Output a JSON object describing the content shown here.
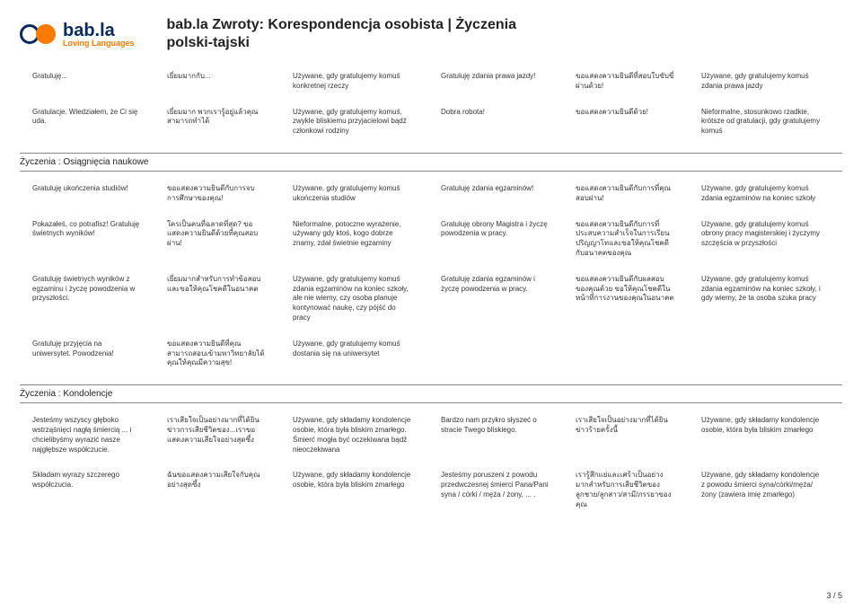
{
  "header": {
    "brand": "bab.la",
    "tagline": "Loving Languages",
    "title_line1": "bab.la Zwroty: Korespondencja osobista | Życzenia",
    "title_line2": "polski-tajski"
  },
  "toprows": [
    {
      "c1": "Gratuluję...",
      "c2": "เยี่ยมมากกับ...",
      "c3": "Używane, gdy gratulujemy komuś konkretnej rzeczy",
      "c4": "Gratuluję zdania prawa jazdy!",
      "c5": "ขอแสดงความยินดีที่สอบใบขับขี่ผ่านด้วย!",
      "c6": "Używane, gdy gratulujemy komuś zdania prawa jazdy"
    },
    {
      "c1": "Gratulacje. Wiedziałem, że Ci się uda.",
      "c2": "เยี่ยมมาก พวกเรารู้อยู่แล้วคุณสามารถทำได้",
      "c3": "Używane, gdy gratulujemy komuś, zwykle bliskiemu przyjacielowi bądź członkowi rodziny",
      "c4": "Dobra robota!",
      "c5": "ขอแสดงความยินดีด้วย!",
      "c6": "Nieformalne, stosunkowo rzadkie, krótsze od gratulacji, gdy gratulujemy komuś"
    }
  ],
  "section1_title": "Życzenia : Osiągnięcia naukowe",
  "section1_rows": [
    {
      "c1": "Gratuluję ukończenia studiów!",
      "c2": "ขอแสดงความยินดีกับการจบการศึกษาของคุณ!",
      "c3": "Używane, gdy gratulujemy komuś ukończenia studiów",
      "c4": "Gratuluję zdania egzaminów!",
      "c5": "ขอแสดงความยินดีกับการที่คุณสอบผ่าน!",
      "c6": "Używane, gdy gratulujemy komuś zdania egzaminów na koniec szkoły"
    },
    {
      "c1": "Pokazałeś, co potrafisz! Gratuluję świetnych wyników!",
      "c2": "ใครเป็นคนที่ฉลาดที่สุด? ขอแสดงความยินดีด้วยที่คุณสอบผ่าน!",
      "c3": "Nieformalne, potoczne wyrażenie, używany gdy ktoś, kogo dobrze znamy, zdał świetnie egzaminy",
      "c4": "Gratuluję obrony Magistra i życzę powodzenia w pracy.",
      "c5": "ขอแสดงความยินดีกับการที่ประสบความสำเร็จในการเรียนปริญญาโทและขอให้คุณโชคดีกับอนาคตของคุณ",
      "c6": "Używane, gdy gratulujemy komuś obrony pracy magisterskiej i życzymy szczęścia w przyszłości"
    },
    {
      "c1": "Gratuluję świetnych wyników z egzaminu i życzę powodzenia w przyszłości.",
      "c2": "เยี่ยมมากสำหรับการทำข้อสอบและขอให้คุณโชคดีในอนาคต",
      "c3": "Używane, gdy gratulujemy komuś zdania egzaminów na koniec szkoły, ale nie wiemy, czy osoba planuje kontynować naukę, czy pójść do pracy",
      "c4": "Gratuluję zdania egzaminów i życzę powodzenia w pracy.",
      "c5": "ขอแสดงความยินดีกับผลสอบของคุณด้วย ขอให้คุณโชคดีในหน้าที่การงานของคุณในอนาคต",
      "c6": "Używane, gdy gratulujemy komuś zdania egzaminów na koniec szkoły, i gdy wiemy, że ta osoba szuka pracy"
    },
    {
      "c1": "Gratuluję przyjęcia na uniwersytet. Powodzenia!",
      "c2": "ขอแสดงความยินดีที่คุณสามารถสอบเข้ามหาวิทยาลัยได้ คุณให้คุณมีความสุข!",
      "c3": "Używane, gdy gratulujemy komuś dostania się na uniwersytet",
      "c4": "",
      "c5": "",
      "c6": ""
    }
  ],
  "section2_title": "Życzenia : Kondolencje",
  "section2_rows": [
    {
      "c1": "Jesteśmy wszyscy głęboko wstrząśnięci nagłą śmiercią ... i chcielibyśmy wyrazić nasze najgłębsze współczucie.",
      "c2": "เราเสียใจเป็นอย่างมากที่ได้ยินข่าวการเสียชีวิตของ...เราขอแสดงความเสียใจอย่างสุดซึ้ง",
      "c3": "Używane, gdy składamy kondolencje osobie, która była bliskim zmarłego. Śmierć mogła być oczekiwana bądź nieoczekiwana",
      "c4": "Bardzo nam przykro słyszeć o stracie Twego bliskiego.",
      "c5": "เราเสียใจเป็นอย่างมากที่ได้ยินข่าวร้ายครั้งนี้",
      "c6": "Używane, gdy składamy kondolencje osobie, która była bliskim zmarłego"
    },
    {
      "c1": "Składam wyrazy szczerego współczucia.",
      "c2": "ฉันขอแสดงความเสียใจกับคุณอย่างสุดซึ้ง",
      "c3": "Używane, gdy składamy kondolencje osobie, która była bliskim zmarłego",
      "c4": "Jesteśmy poruszeni z powodu przedwczesnej śmierci Pana/Pani syna / córki / męża / żony, ... .",
      "c5": "เรารู้สึกแย่และเศร้าเป็นอย่างมากสำหรับการเสียชีวิตของลูกชาย/ลูกสาว/สามี/ภรรยาของคุณ",
      "c6": "Używane, gdy składamy kondolencje z powodu śmierci syna/córki/męża/żony (zawiera imię zmarłego)"
    }
  ],
  "pagenum": "3 / 5"
}
